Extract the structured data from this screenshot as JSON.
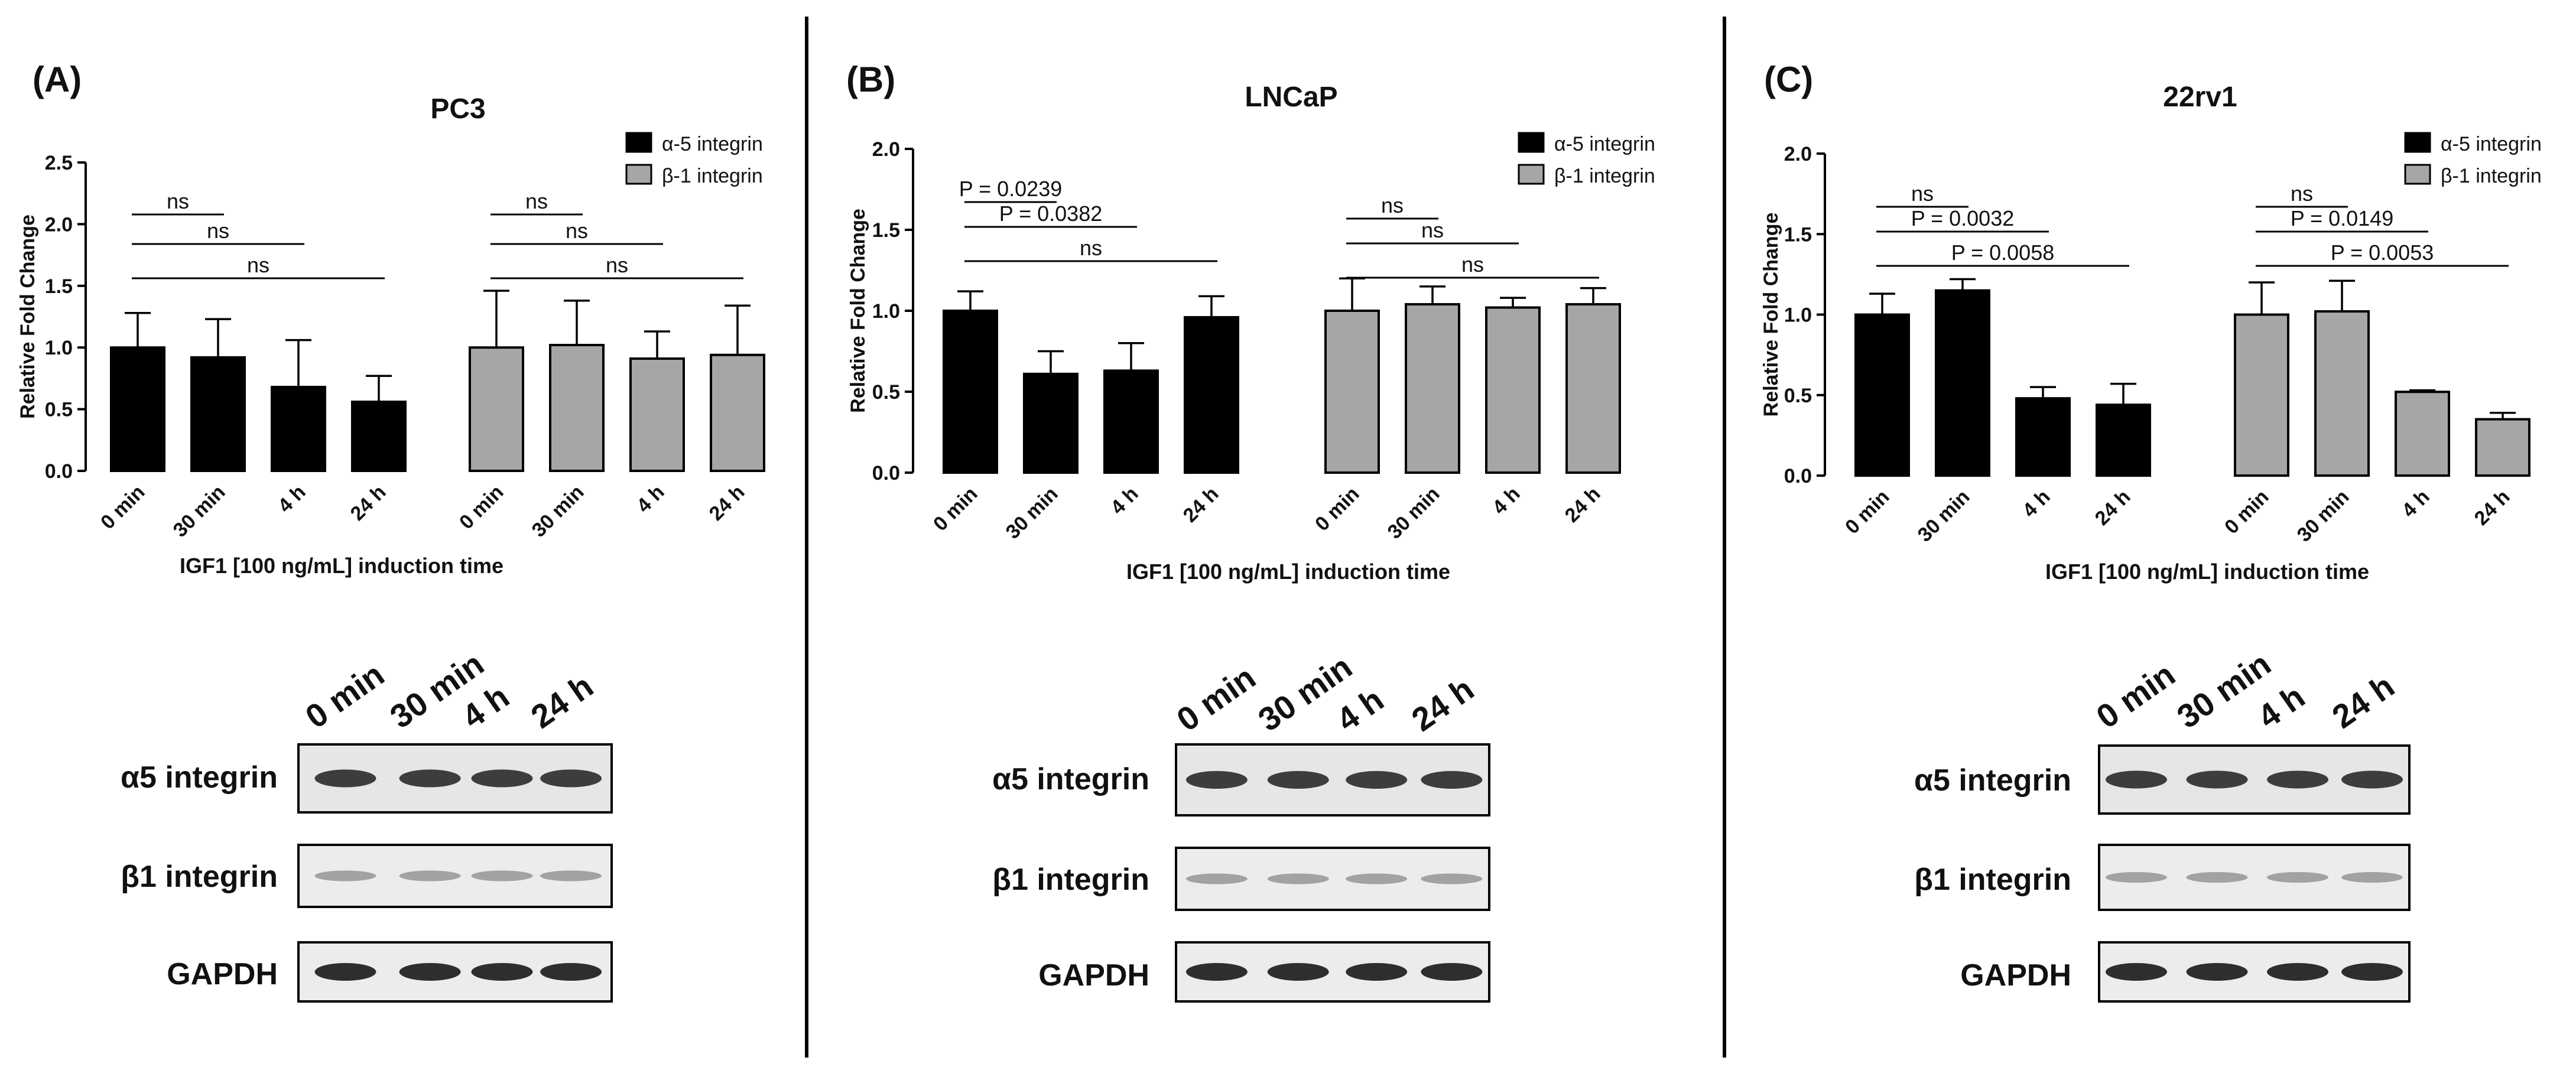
{
  "figure": {
    "x_axis_label": "IGF1 [100 ng/mL] induction time",
    "y_axis_label": "Relative Fold Change",
    "legend": [
      "α-5 integrin",
      "β-1 integrin"
    ],
    "colors": {
      "alpha5": "#000000",
      "beta1": "#a6a6a6"
    }
  },
  "chart_data": [
    {
      "panel_label": "(A)",
      "title": "PC3",
      "type": "bar",
      "categories": [
        "0 min",
        "30 min",
        "4 h",
        "24 h"
      ],
      "ylim": [
        0,
        2.5
      ],
      "yticks": [
        "0.0",
        "0.5",
        "1.0",
        "1.5",
        "2.0",
        "2.5"
      ],
      "series": [
        {
          "name": "α-5 integrin",
          "values": [
            1.0,
            0.92,
            0.68,
            0.56
          ],
          "errors": [
            0.28,
            0.31,
            0.38,
            0.21
          ]
        },
        {
          "name": "β-1 integrin",
          "values": [
            1.0,
            1.02,
            0.91,
            0.94
          ],
          "errors": [
            0.46,
            0.36,
            0.22,
            0.4
          ]
        }
      ],
      "significance": [
        {
          "series": 0,
          "from": 0,
          "to": 1,
          "label": "ns"
        },
        {
          "series": 0,
          "from": 0,
          "to": 2,
          "label": "ns"
        },
        {
          "series": 0,
          "from": 0,
          "to": 3,
          "label": "ns"
        },
        {
          "series": 1,
          "from": 0,
          "to": 1,
          "label": "ns"
        },
        {
          "series": 1,
          "from": 0,
          "to": 2,
          "label": "ns"
        },
        {
          "series": 1,
          "from": 0,
          "to": 3,
          "label": "ns"
        }
      ],
      "blot": {
        "lanes": [
          "0 min",
          "30 min",
          "4 h",
          "24 h"
        ],
        "rows": [
          "α5 integrin",
          "β1 integrin",
          "GAPDH"
        ]
      }
    },
    {
      "panel_label": "(B)",
      "title": "LNCaP",
      "type": "bar",
      "categories": [
        "0 min",
        "30 min",
        "4 h",
        "24 h"
      ],
      "ylim": [
        0,
        2.0
      ],
      "yticks": [
        "0.0",
        "0.5",
        "1.0",
        "1.5",
        "2.0"
      ],
      "series": [
        {
          "name": "α-5 integrin",
          "values": [
            1.0,
            0.61,
            0.63,
            0.96
          ],
          "errors": [
            0.12,
            0.14,
            0.17,
            0.13
          ]
        },
        {
          "name": "β-1 integrin",
          "values": [
            1.0,
            1.04,
            1.02,
            1.04
          ],
          "errors": [
            0.2,
            0.11,
            0.06,
            0.1
          ]
        }
      ],
      "significance": [
        {
          "series": 0,
          "from": 0,
          "to": 1,
          "label": "P = 0.0239"
        },
        {
          "series": 0,
          "from": 0,
          "to": 2,
          "label": "P = 0.0382"
        },
        {
          "series": 0,
          "from": 0,
          "to": 3,
          "label": "ns"
        },
        {
          "series": 1,
          "from": 0,
          "to": 1,
          "label": "ns"
        },
        {
          "series": 1,
          "from": 0,
          "to": 2,
          "label": "ns"
        },
        {
          "series": 1,
          "from": 0,
          "to": 3,
          "label": "ns"
        }
      ],
      "blot": {
        "lanes": [
          "0 min",
          "30 min",
          "4 h",
          "24 h"
        ],
        "rows": [
          "α5 integrin",
          "β1 integrin",
          "GAPDH"
        ]
      }
    },
    {
      "panel_label": "(C)",
      "title": "22rv1",
      "type": "bar",
      "categories": [
        "0 min",
        "30 min",
        "4 h",
        "24 h"
      ],
      "ylim": [
        0,
        2.0
      ],
      "yticks": [
        "0.0",
        "0.5",
        "1.0",
        "1.5",
        "2.0"
      ],
      "series": [
        {
          "name": "α-5 integrin",
          "values": [
            1.0,
            1.15,
            0.48,
            0.44
          ],
          "errors": [
            0.13,
            0.07,
            0.07,
            0.13
          ]
        },
        {
          "name": "β-1 integrin",
          "values": [
            1.0,
            1.02,
            0.52,
            0.35
          ],
          "errors": [
            0.2,
            0.19,
            0.01,
            0.04
          ]
        }
      ],
      "significance": [
        {
          "series": 0,
          "from": 0,
          "to": 1,
          "label": "ns"
        },
        {
          "series": 0,
          "from": 0,
          "to": 2,
          "label": "P = 0.0032"
        },
        {
          "series": 0,
          "from": 0,
          "to": 3,
          "label": "P = 0.0058"
        },
        {
          "series": 1,
          "from": 0,
          "to": 1,
          "label": "ns"
        },
        {
          "series": 1,
          "from": 0,
          "to": 2,
          "label": "P = 0.0149"
        },
        {
          "series": 1,
          "from": 0,
          "to": 3,
          "label": "P = 0.0053"
        }
      ],
      "blot": {
        "lanes": [
          "0 min",
          "30 min",
          "4 h",
          "24 h"
        ],
        "rows": [
          "α5 integrin",
          "β1 integrin",
          "GAPDH"
        ]
      }
    }
  ]
}
